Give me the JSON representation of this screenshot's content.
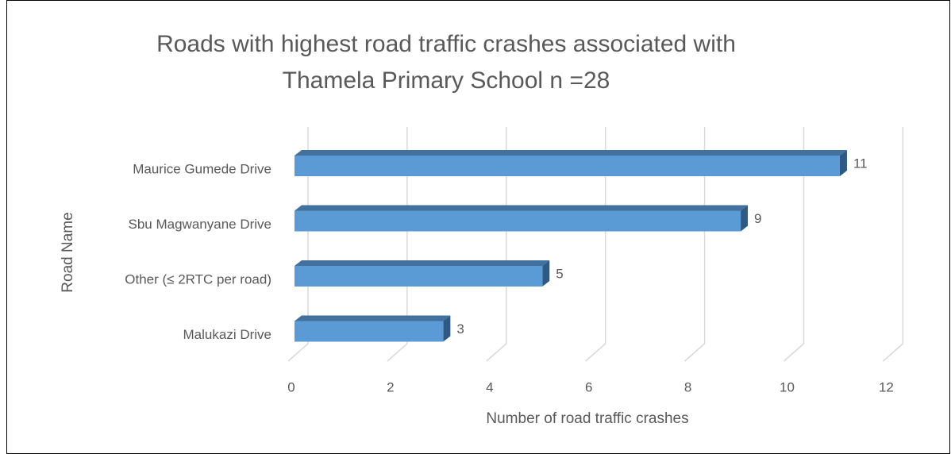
{
  "chart_data": {
    "type": "bar3d_horizontal",
    "title": [
      "Roads with highest road traffic crashes associated with",
      "Thamela Primary School n =28"
    ],
    "categories": [
      "Maurice Gumede Drive",
      "Sbu Magwanyane Drive",
      "Other (≤ 2RTC per road)",
      "Malukazi Drive"
    ],
    "values": [
      11,
      9,
      5,
      3
    ],
    "color": "#5b9bd5",
    "xlim": [
      0,
      12
    ],
    "xticks": [
      0,
      2,
      4,
      6,
      8,
      10,
      12
    ],
    "x_label": "Number of road traffic crashes",
    "y_label": "Road Name",
    "grid": true
  }
}
